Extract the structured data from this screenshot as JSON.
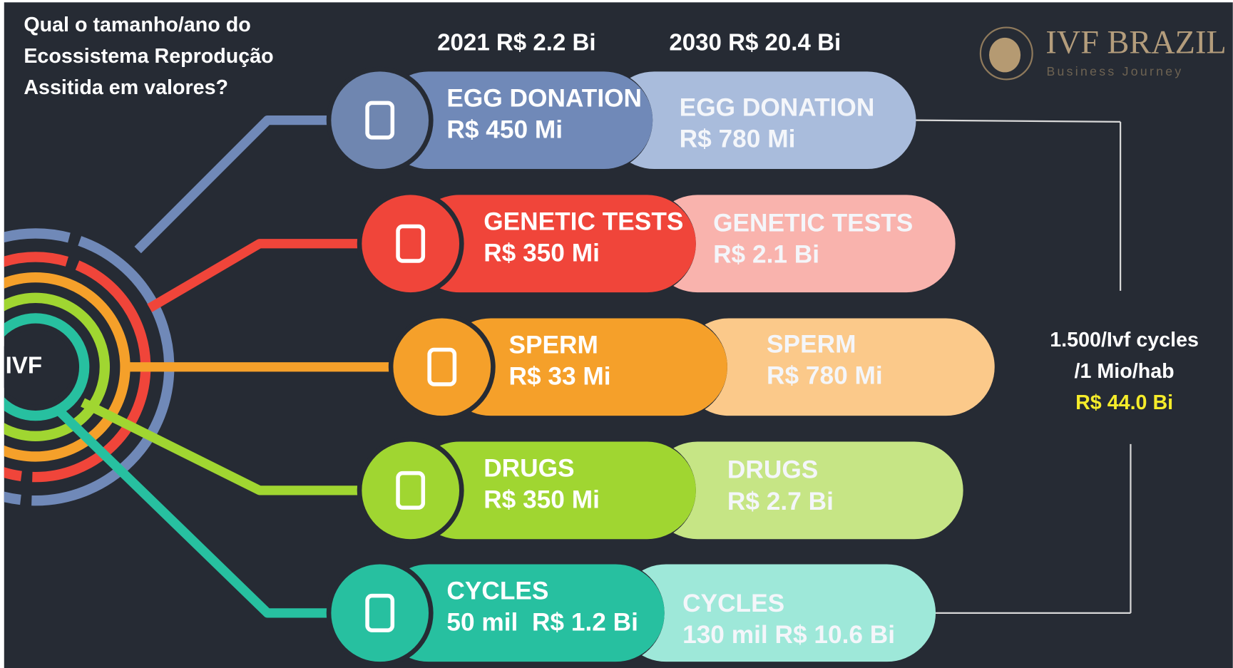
{
  "question": [
    "Qual o tamanho/ano do",
    "Ecossistema Reprodução",
    "Assitida em valores?"
  ],
  "header_2021": "2021 R$ 2.2 Bi",
  "header_2030": "2030 R$ 20.4 Bi",
  "logo": {
    "name": "IVF BRAZIL",
    "tagline": "Business Journey"
  },
  "center": "IVF",
  "rows": [
    {
      "label_2021": "EGG DONATION",
      "value_2021": "R$ 450 Mi",
      "label_2030": "EGG DONATION",
      "value_2030": "R$ 780 Mi"
    },
    {
      "label_2021": "GENETIC TESTS",
      "value_2021": "R$ 350 Mi",
      "label_2030": "GENETIC TESTS",
      "value_2030": "R$ 2.1 Bi"
    },
    {
      "label_2021": "SPERM",
      "value_2021": "R$ 33 Mi",
      "label_2030": "SPERM",
      "value_2030": "R$ 780 Mi"
    },
    {
      "label_2021": "DRUGS",
      "value_2021": "R$ 350 Mi",
      "label_2030": "DRUGS",
      "value_2030": "R$ 2.7 Bi"
    },
    {
      "label_2021": "CYCLES",
      "value_2021": "50 mil  R$ 1.2 Bi",
      "label_2030": "CYCLES",
      "value_2030": "130 mil R$ 10.6 Bi"
    }
  ],
  "side_note": [
    "1.500/Ivf cycles",
    "/1 Mio/hab",
    "R$ 44.0 Bi"
  ]
}
